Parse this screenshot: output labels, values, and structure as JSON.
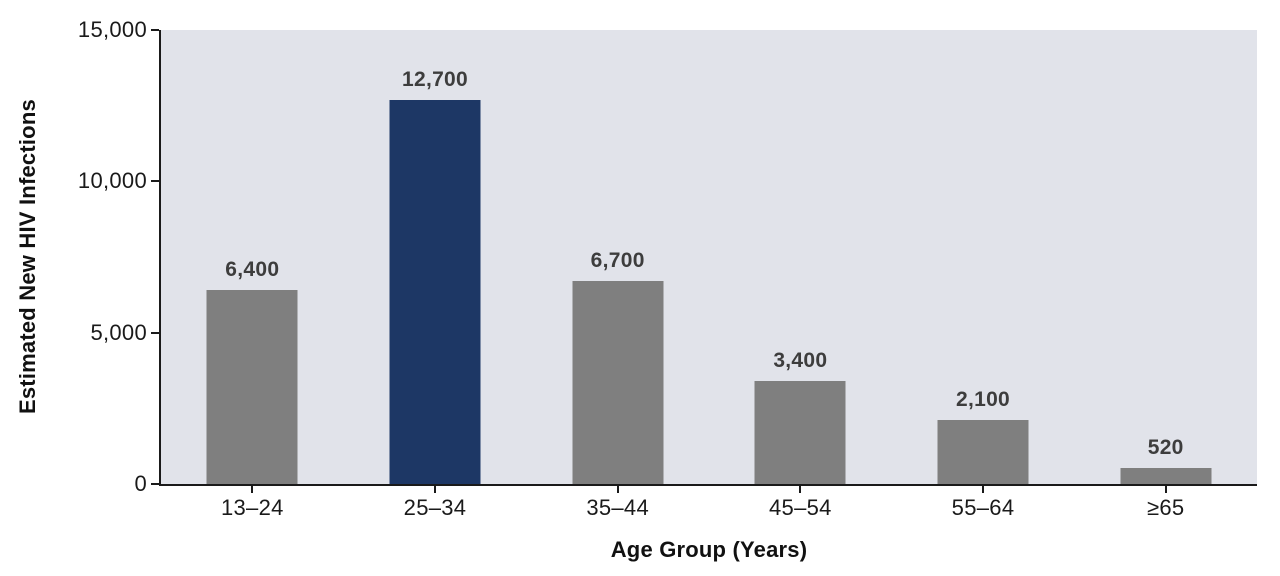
{
  "chart_data": {
    "type": "bar",
    "title": "",
    "xlabel": "Age Group (Years)",
    "ylabel": "Estimated New HIV Infections",
    "categories": [
      "13–24",
      "25–34",
      "35–44",
      "45–54",
      "55–64",
      "≥65"
    ],
    "values": [
      6400,
      12700,
      6700,
      3400,
      2100,
      520
    ],
    "value_labels": [
      "6,400",
      "12,700",
      "6,700",
      "3,400",
      "2,100",
      "520"
    ],
    "highlight_index": 1,
    "ylim": [
      0,
      15000
    ],
    "yticks": [
      {
        "value": 0,
        "label": "0"
      },
      {
        "value": 5000,
        "label": "5,000"
      },
      {
        "value": 10000,
        "label": "10,000"
      },
      {
        "value": 15000,
        "label": "15,000"
      }
    ],
    "grid": false,
    "legend": null,
    "colors": {
      "bar": "#7f7f7f",
      "highlight": "#1d3765",
      "plot_background": "#e1e3ea",
      "axis": "#1a1a1a",
      "value_label": "#3d3d3d"
    }
  }
}
